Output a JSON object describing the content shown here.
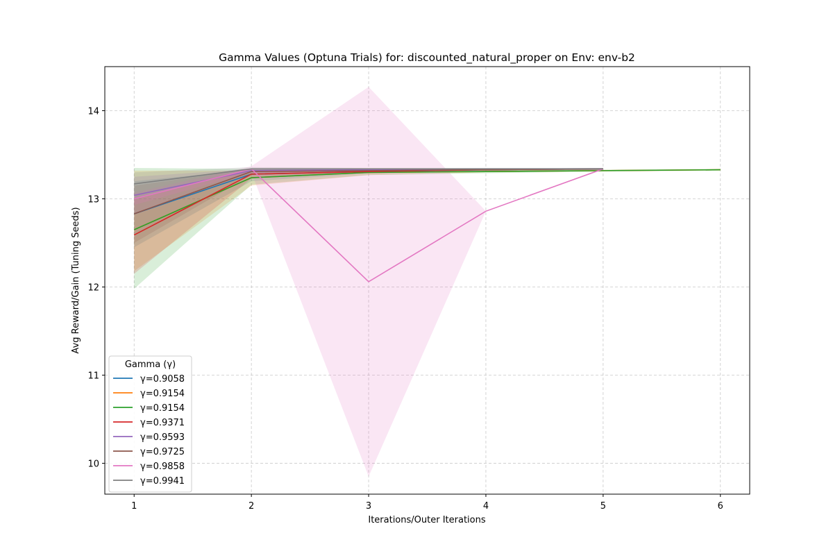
{
  "chart_data": {
    "type": "line",
    "title": "Gamma Values (Optuna Trials) for: discounted_natural_proper on Env: env-b2",
    "xlabel": "Iterations/Outer Iterations",
    "ylabel": "Avg Reward/Gain (Tuning Seeds)",
    "xlim": [
      0.75,
      6.25
    ],
    "ylim": [
      9.65,
      14.5
    ],
    "xticks": [
      1,
      2,
      3,
      4,
      5,
      6
    ],
    "yticks": [
      10,
      11,
      12,
      13,
      14
    ],
    "grid": true,
    "legend": {
      "title": "Gamma (γ)",
      "placement": "lower-left"
    },
    "series": [
      {
        "name": "γ=0.9058",
        "color": "#1f77b4",
        "x": [
          1,
          2,
          3,
          4,
          5
        ],
        "y": [
          12.83,
          13.28,
          13.31,
          13.33,
          13.34
        ],
        "lower": [
          12.45,
          13.2,
          13.29,
          13.31,
          13.33
        ],
        "upper": [
          13.2,
          13.33,
          13.33,
          13.34,
          13.35
        ]
      },
      {
        "name": "γ=0.9154",
        "color": "#ff7f0e",
        "x": [
          1,
          2,
          3,
          4,
          5,
          6
        ],
        "y": [
          12.65,
          13.24,
          13.3,
          13.31,
          13.32,
          13.33
        ],
        "lower": [
          12.18,
          13.15,
          13.27,
          13.3,
          13.31,
          13.32
        ],
        "upper": [
          13.32,
          13.32,
          13.33,
          13.33,
          13.33,
          13.34
        ]
      },
      {
        "name": "γ=0.9154",
        "color": "#2ca02c",
        "x": [
          1,
          2,
          3,
          4,
          5,
          6
        ],
        "y": [
          12.65,
          13.24,
          13.3,
          13.31,
          13.32,
          13.33
        ],
        "lower": [
          11.98,
          13.16,
          13.27,
          13.29,
          13.31,
          13.32
        ],
        "upper": [
          13.35,
          13.34,
          13.33,
          13.33,
          13.33,
          13.34
        ]
      },
      {
        "name": "γ=0.9371",
        "color": "#d62728",
        "x": [
          1,
          2,
          3,
          4,
          5
        ],
        "y": [
          12.59,
          13.28,
          13.31,
          13.33,
          13.34
        ],
        "lower": [
          12.15,
          13.23,
          13.3,
          13.32,
          13.33
        ],
        "upper": [
          13.0,
          13.32,
          13.33,
          13.34,
          13.35
        ]
      },
      {
        "name": "γ=0.9593",
        "color": "#9467bd",
        "x": [
          1,
          2,
          3,
          4,
          5
        ],
        "y": [
          13.04,
          13.32,
          13.33,
          13.34,
          13.34
        ],
        "lower": [
          12.82,
          13.29,
          13.32,
          13.33,
          13.33
        ],
        "upper": [
          13.25,
          13.34,
          13.34,
          13.35,
          13.35
        ]
      },
      {
        "name": "γ=0.9725",
        "color": "#8c564b",
        "x": [
          1,
          2,
          3,
          4,
          5
        ],
        "y": [
          12.83,
          13.31,
          13.32,
          13.33,
          13.34
        ],
        "lower": [
          12.5,
          13.27,
          13.31,
          13.32,
          13.33
        ],
        "upper": [
          13.15,
          13.34,
          13.33,
          13.34,
          13.35
        ]
      },
      {
        "name": "γ=0.9858",
        "color": "#e377c2",
        "x": [
          1,
          2,
          3,
          4,
          5
        ],
        "y": [
          13.0,
          13.34,
          12.06,
          12.86,
          13.34
        ],
        "lower": [
          12.93,
          13.3,
          9.85,
          12.86,
          13.33
        ],
        "upper": [
          13.07,
          13.37,
          14.27,
          12.86,
          13.35
        ]
      },
      {
        "name": "γ=0.9941",
        "color": "#7f7f7f",
        "x": [
          1,
          2,
          3,
          4,
          5
        ],
        "y": [
          13.17,
          13.34,
          13.34,
          13.34,
          13.34
        ],
        "lower": [
          13.0,
          13.32,
          13.33,
          13.33,
          13.33
        ],
        "upper": [
          13.3,
          13.36,
          13.35,
          13.35,
          13.35
        ]
      }
    ]
  }
}
